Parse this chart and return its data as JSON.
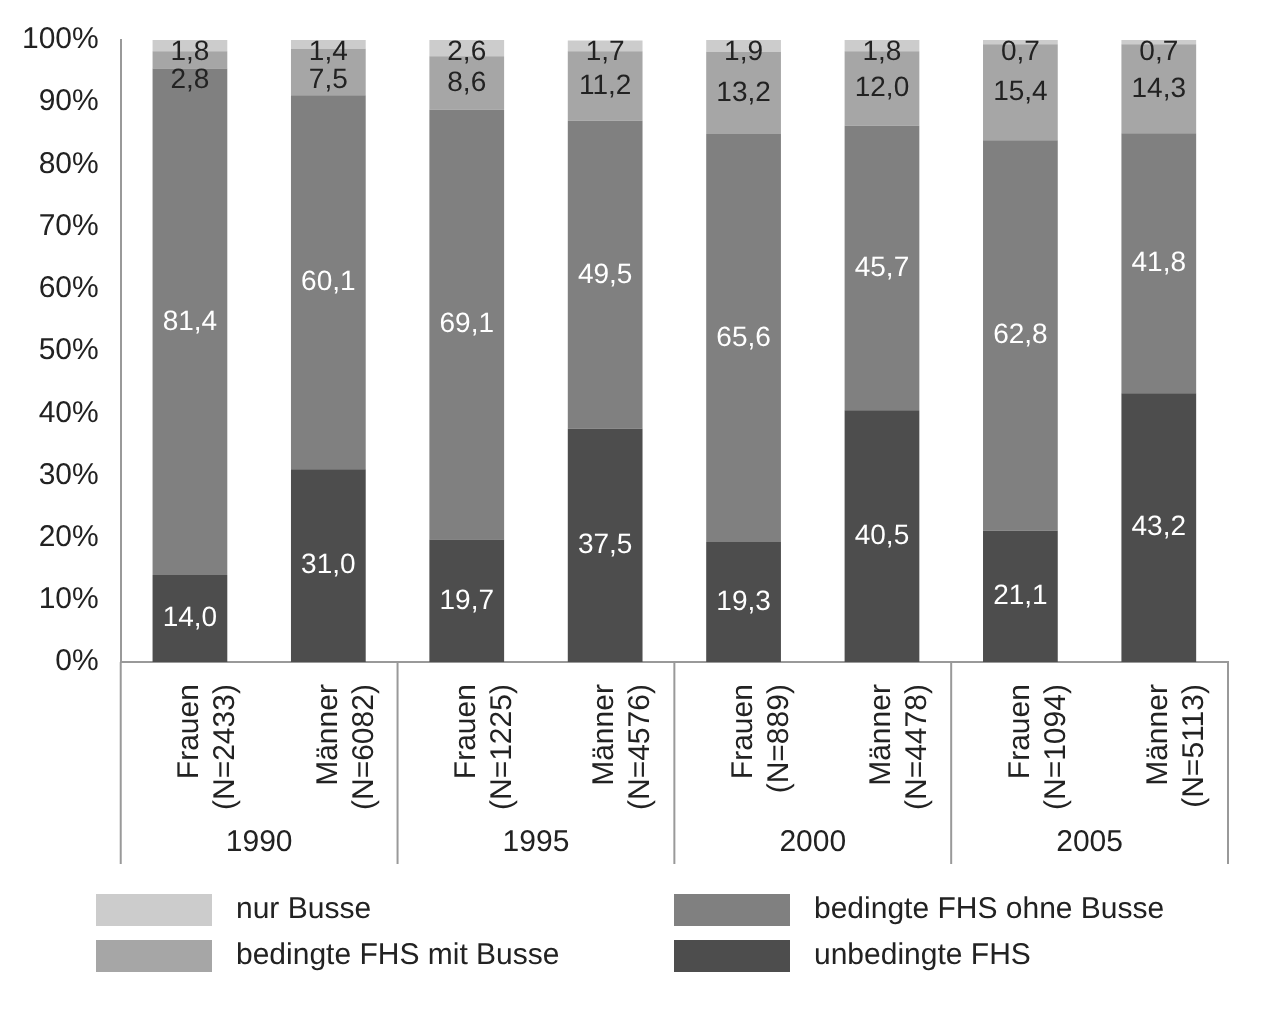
{
  "chart_data": {
    "type": "bar",
    "stacked": true,
    "categories": [
      "Frauen\n(N=2433)",
      "Männer\n(N=6082)",
      "Frauen\n(N=1225)",
      "Männer\n(N=4576)",
      "Frauen\n(N=889)",
      "Männer\n(N=4478)",
      "Frauen\n(N=1094)",
      "Männer\n(N=5113)"
    ],
    "annotations": [
      "1990",
      "1995",
      "2000",
      "2005"
    ],
    "series": [
      {
        "name": "unbedingte FHS",
        "color": "#4d4d4d",
        "values": [
          14.0,
          31.0,
          19.7,
          37.5,
          19.3,
          40.5,
          21.1,
          43.2
        ],
        "value_labels": [
          "14,0",
          "31,0",
          "19,7",
          "37,5",
          "19,3",
          "40,5",
          "21,1",
          "43,2"
        ]
      },
      {
        "name": "bedingte FHS ohne Busse",
        "color": "#808080",
        "values": [
          81.4,
          60.1,
          69.1,
          49.5,
          65.6,
          45.7,
          62.8,
          41.8
        ],
        "value_labels": [
          "81,4",
          "60,1",
          "69,1",
          "49,5",
          "65,6",
          "45,7",
          "62,8",
          "41,8"
        ]
      },
      {
        "name": "bedingte FHS mit Busse",
        "color": "#a6a6a6",
        "values": [
          2.8,
          7.5,
          8.6,
          11.2,
          13.2,
          12.0,
          15.4,
          14.3
        ],
        "value_labels": [
          "2,8",
          "7,5",
          "8,6",
          "11,2",
          "13,2",
          "12,0",
          "15,4",
          "14,3"
        ]
      },
      {
        "name": "nur Busse",
        "color": "#cccccc",
        "values": [
          1.8,
          1.4,
          2.6,
          1.7,
          1.9,
          1.8,
          0.7,
          0.7
        ],
        "value_labels": [
          "1,8",
          "1,4",
          "2,6",
          "1,7",
          "1,9",
          "1,8",
          "0,7",
          "0,7"
        ]
      }
    ],
    "ylim": [
      0,
      100
    ],
    "yticks": [
      {
        "value": 0,
        "label": "0%"
      },
      {
        "value": 10,
        "label": "10%"
      },
      {
        "value": 20,
        "label": "20%"
      },
      {
        "value": 30,
        "label": "30%"
      },
      {
        "value": 40,
        "label": "40%"
      },
      {
        "value": 50,
        "label": "50%"
      },
      {
        "value": 60,
        "label": "60%"
      },
      {
        "value": 70,
        "label": "70%"
      },
      {
        "value": 80,
        "label": "80%"
      },
      {
        "value": 90,
        "label": "90%"
      },
      {
        "value": 100,
        "label": "100%"
      }
    ],
    "grid": false,
    "legend": "bottom"
  }
}
